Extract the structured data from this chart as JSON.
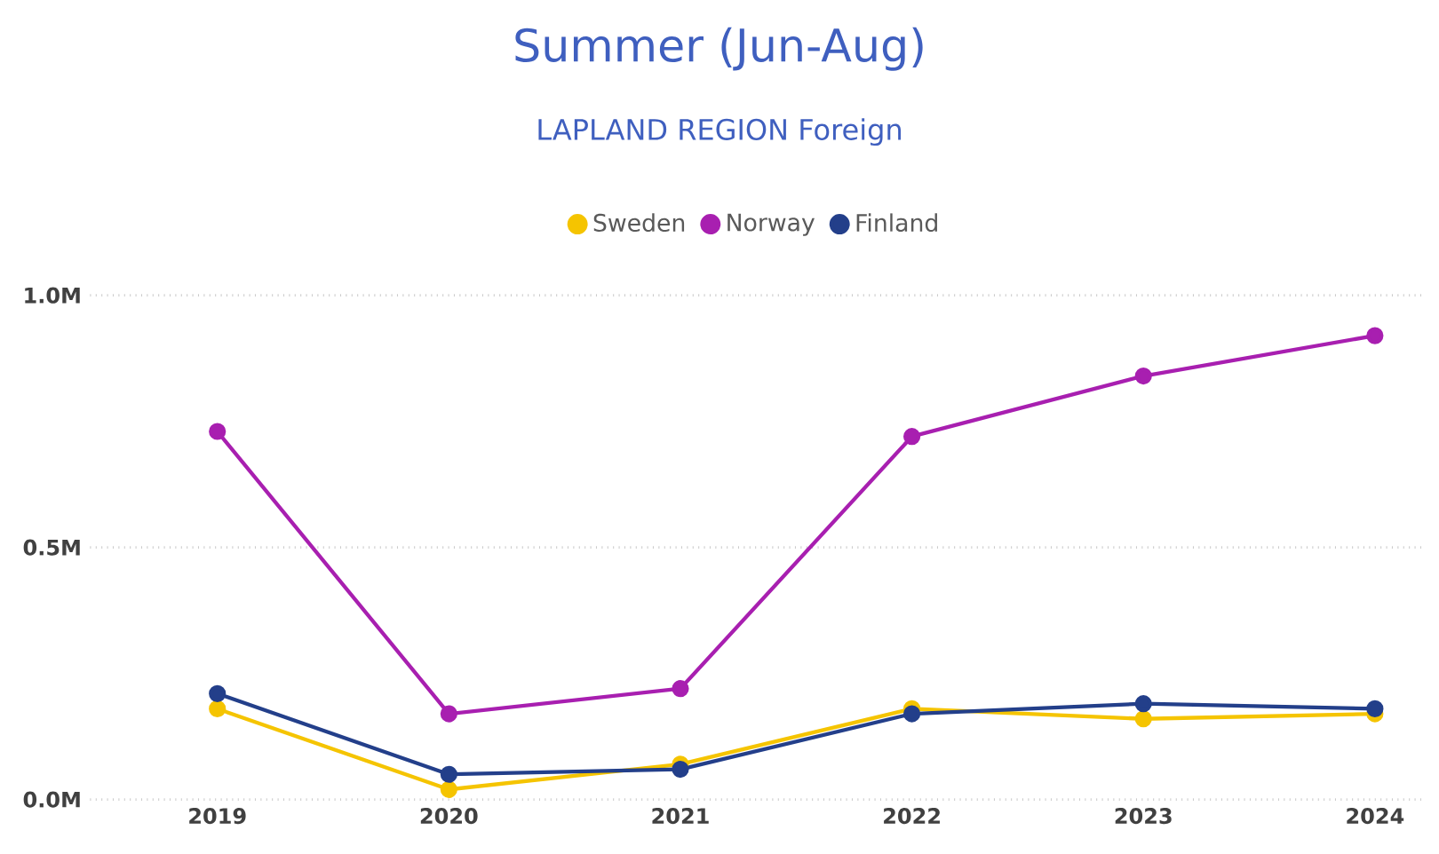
{
  "chart_data": {
    "type": "line",
    "title": "Summer (Jun-Aug)",
    "subtitle": "LAPLAND REGION Foreign",
    "categories": [
      "2019",
      "2020",
      "2021",
      "2022",
      "2023",
      "2024"
    ],
    "series": [
      {
        "name": "Sweden",
        "color": "#f5c400",
        "values": [
          0.18,
          0.02,
          0.07,
          0.18,
          0.16,
          0.17
        ]
      },
      {
        "name": "Norway",
        "color": "#a81fb0",
        "values": [
          0.73,
          0.17,
          0.22,
          0.72,
          0.84,
          0.92
        ]
      },
      {
        "name": "Finland",
        "color": "#233f8a",
        "values": [
          0.21,
          0.05,
          0.06,
          0.17,
          0.19,
          0.18
        ]
      }
    ],
    "ylim": [
      0,
      1.0
    ],
    "yticks": [
      {
        "value": 0,
        "label": "0.0M"
      },
      {
        "value": 0.5,
        "label": "0.5M"
      },
      {
        "value": 1.0,
        "label": "1.0M"
      }
    ],
    "grid": "y",
    "legend": "top",
    "marker": "circle",
    "line_style": "solid"
  }
}
